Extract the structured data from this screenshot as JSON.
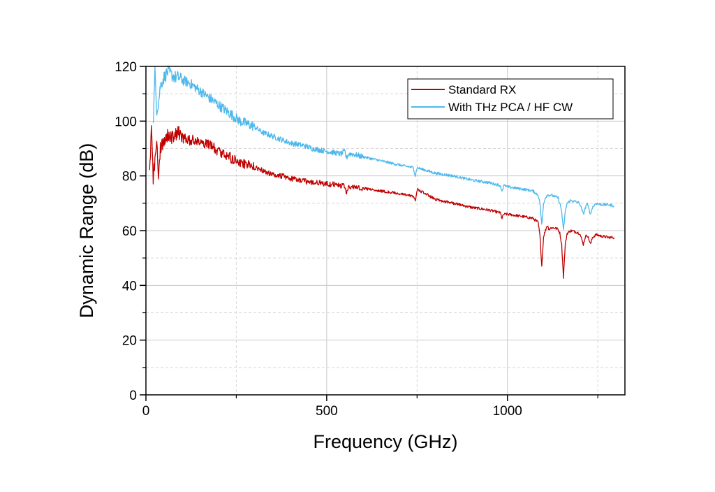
{
  "chart_data": {
    "type": "line",
    "title": "",
    "xlabel": "Frequency (GHz)",
    "ylabel": "Dynamic Range (dB)",
    "xlim": [
      0,
      1325
    ],
    "ylim": [
      0,
      120
    ],
    "x_ticks": [
      0,
      500,
      1000
    ],
    "y_ticks": [
      0,
      20,
      40,
      60,
      80,
      100,
      120
    ],
    "x_tick_labels": [
      "0",
      "500",
      "1000"
    ],
    "y_tick_labels": [
      "0",
      "20",
      "40",
      "60",
      "80",
      "100",
      "120"
    ],
    "grid": true,
    "minor_grid": true,
    "legend_position": "top-right",
    "series": [
      {
        "name": "Standard RX",
        "color": "#c00000",
        "points": [
          [
            10,
            80
          ],
          [
            15,
            98
          ],
          [
            20,
            79
          ],
          [
            25,
            86
          ],
          [
            30,
            93
          ],
          [
            35,
            80
          ],
          [
            40,
            90
          ],
          [
            50,
            93
          ],
          [
            60,
            95
          ],
          [
            70,
            94
          ],
          [
            80,
            95
          ],
          [
            90,
            96
          ],
          [
            100,
            94
          ],
          [
            120,
            93
          ],
          [
            140,
            93
          ],
          [
            160,
            92
          ],
          [
            180,
            91
          ],
          [
            200,
            89
          ],
          [
            220,
            88
          ],
          [
            240,
            86
          ],
          [
            260,
            85
          ],
          [
            280,
            84
          ],
          [
            300,
            83
          ],
          [
            320,
            82
          ],
          [
            340,
            81
          ],
          [
            360,
            80
          ],
          [
            380,
            80
          ],
          [
            400,
            79
          ],
          [
            420,
            78.5
          ],
          [
            440,
            78
          ],
          [
            460,
            77.5
          ],
          [
            480,
            77.5
          ],
          [
            500,
            77
          ],
          [
            520,
            77
          ],
          [
            540,
            76.5
          ],
          [
            550,
            76
          ],
          [
            555,
            73.5
          ],
          [
            560,
            75.5
          ],
          [
            570,
            76
          ],
          [
            600,
            75.5
          ],
          [
            650,
            74.5
          ],
          [
            700,
            73.5
          ],
          [
            740,
            72.5
          ],
          [
            745,
            71
          ],
          [
            750,
            74.5
          ],
          [
            752,
            75
          ],
          [
            800,
            71.5
          ],
          [
            850,
            70
          ],
          [
            900,
            68.5
          ],
          [
            950,
            67.5
          ],
          [
            980,
            66.5
          ],
          [
            985,
            64.5
          ],
          [
            990,
            66
          ],
          [
            1000,
            66
          ],
          [
            1050,
            65
          ],
          [
            1070,
            64.5
          ],
          [
            1085,
            63
          ],
          [
            1090,
            58
          ],
          [
            1095,
            47
          ],
          [
            1100,
            58
          ],
          [
            1105,
            60
          ],
          [
            1110,
            62
          ],
          [
            1115,
            60.5
          ],
          [
            1120,
            61
          ],
          [
            1125,
            61
          ],
          [
            1130,
            61
          ],
          [
            1140,
            60.5
          ],
          [
            1145,
            59
          ],
          [
            1150,
            55
          ],
          [
            1155,
            43
          ],
          [
            1160,
            55
          ],
          [
            1165,
            59
          ],
          [
            1175,
            60
          ],
          [
            1190,
            59.5
          ],
          [
            1200,
            59
          ],
          [
            1205,
            57
          ],
          [
            1210,
            55
          ],
          [
            1215,
            57.5
          ],
          [
            1220,
            58.5
          ],
          [
            1225,
            57
          ],
          [
            1230,
            55
          ],
          [
            1235,
            57.5
          ],
          [
            1245,
            58.5
          ],
          [
            1260,
            58
          ],
          [
            1280,
            57.5
          ],
          [
            1295,
            57.5
          ]
        ]
      },
      {
        "name": "With THz PCA / HF CW",
        "color": "#4db8ec",
        "points": [
          [
            20,
            98
          ],
          [
            25,
            118
          ],
          [
            30,
            104
          ],
          [
            35,
            107
          ],
          [
            40,
            113
          ],
          [
            50,
            116
          ],
          [
            60,
            118
          ],
          [
            70,
            117
          ],
          [
            80,
            116
          ],
          [
            90,
            116
          ],
          [
            100,
            115
          ],
          [
            120,
            114
          ],
          [
            140,
            112
          ],
          [
            160,
            110
          ],
          [
            180,
            108
          ],
          [
            200,
            106
          ],
          [
            220,
            104
          ],
          [
            240,
            102
          ],
          [
            260,
            100
          ],
          [
            280,
            99
          ],
          [
            300,
            98
          ],
          [
            320,
            96
          ],
          [
            340,
            95
          ],
          [
            360,
            94
          ],
          [
            380,
            93
          ],
          [
            400,
            92
          ],
          [
            420,
            91.5
          ],
          [
            440,
            91
          ],
          [
            460,
            90
          ],
          [
            480,
            89.5
          ],
          [
            500,
            89
          ],
          [
            520,
            88.5
          ],
          [
            540,
            88
          ],
          [
            550,
            89
          ],
          [
            555,
            86.5
          ],
          [
            560,
            88
          ],
          [
            570,
            88
          ],
          [
            600,
            87
          ],
          [
            650,
            85.5
          ],
          [
            700,
            84
          ],
          [
            740,
            83
          ],
          [
            745,
            80
          ],
          [
            750,
            83
          ],
          [
            800,
            81
          ],
          [
            850,
            80
          ],
          [
            900,
            78.5
          ],
          [
            950,
            77.5
          ],
          [
            980,
            76.5
          ],
          [
            985,
            74.5
          ],
          [
            990,
            76.5
          ],
          [
            1000,
            76
          ],
          [
            1050,
            75
          ],
          [
            1070,
            74.5
          ],
          [
            1085,
            73
          ],
          [
            1090,
            70
          ],
          [
            1095,
            62
          ],
          [
            1100,
            70
          ],
          [
            1105,
            72
          ],
          [
            1110,
            73
          ],
          [
            1120,
            73
          ],
          [
            1130,
            72.5
          ],
          [
            1140,
            72
          ],
          [
            1145,
            70
          ],
          [
            1150,
            67
          ],
          [
            1155,
            60
          ],
          [
            1160,
            67
          ],
          [
            1165,
            70
          ],
          [
            1175,
            71
          ],
          [
            1190,
            70.5
          ],
          [
            1200,
            70
          ],
          [
            1205,
            68
          ],
          [
            1210,
            66
          ],
          [
            1215,
            68
          ],
          [
            1220,
            70
          ],
          [
            1225,
            68
          ],
          [
            1230,
            66
          ],
          [
            1235,
            68.5
          ],
          [
            1245,
            70
          ],
          [
            1260,
            69.5
          ],
          [
            1280,
            69.5
          ],
          [
            1295,
            69
          ]
        ]
      }
    ]
  }
}
